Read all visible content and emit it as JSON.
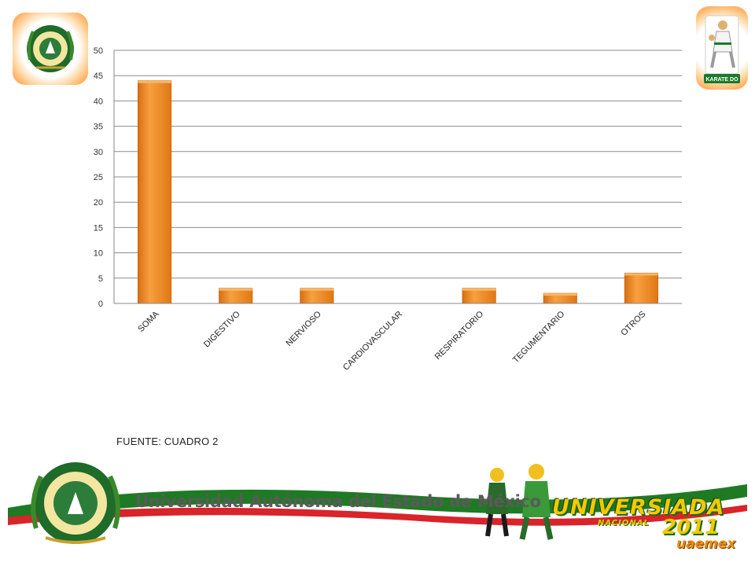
{
  "chart_data": {
    "type": "bar",
    "categories": [
      "SOMA",
      "DIGESTIVO",
      "NERVIOSO",
      "CARDIOVASCULAR",
      "RESPIRATORIO",
      "TEGUMENTARIO",
      "OTROS"
    ],
    "values": [
      44,
      3,
      3,
      0,
      3,
      2,
      6
    ],
    "ylim": [
      0,
      50
    ],
    "yticks": [
      0,
      5,
      10,
      15,
      20,
      25,
      30,
      35,
      40,
      45,
      50
    ],
    "title": "",
    "xlabel": "",
    "ylabel": "",
    "grid": true,
    "bar_color": "#f08a1e",
    "bar_color_dark": "#c9600c"
  },
  "source_note": "FUENTE: CUADRO 2",
  "banner": {
    "university": "Universidad Autónoma del Estado de México",
    "event_title": "UNIVERSIADA",
    "event_sub": "NACIONAL",
    "event_year": "2011",
    "event_org": "uaemex"
  },
  "logos": {
    "left": "university-crest-icon",
    "right": "karate-do-logo-icon",
    "right_caption": "KARATE DO"
  },
  "colors": {
    "accent_orange": "#f08a1e",
    "banner_green": "#1f7a24",
    "banner_red": "#d8242a"
  }
}
